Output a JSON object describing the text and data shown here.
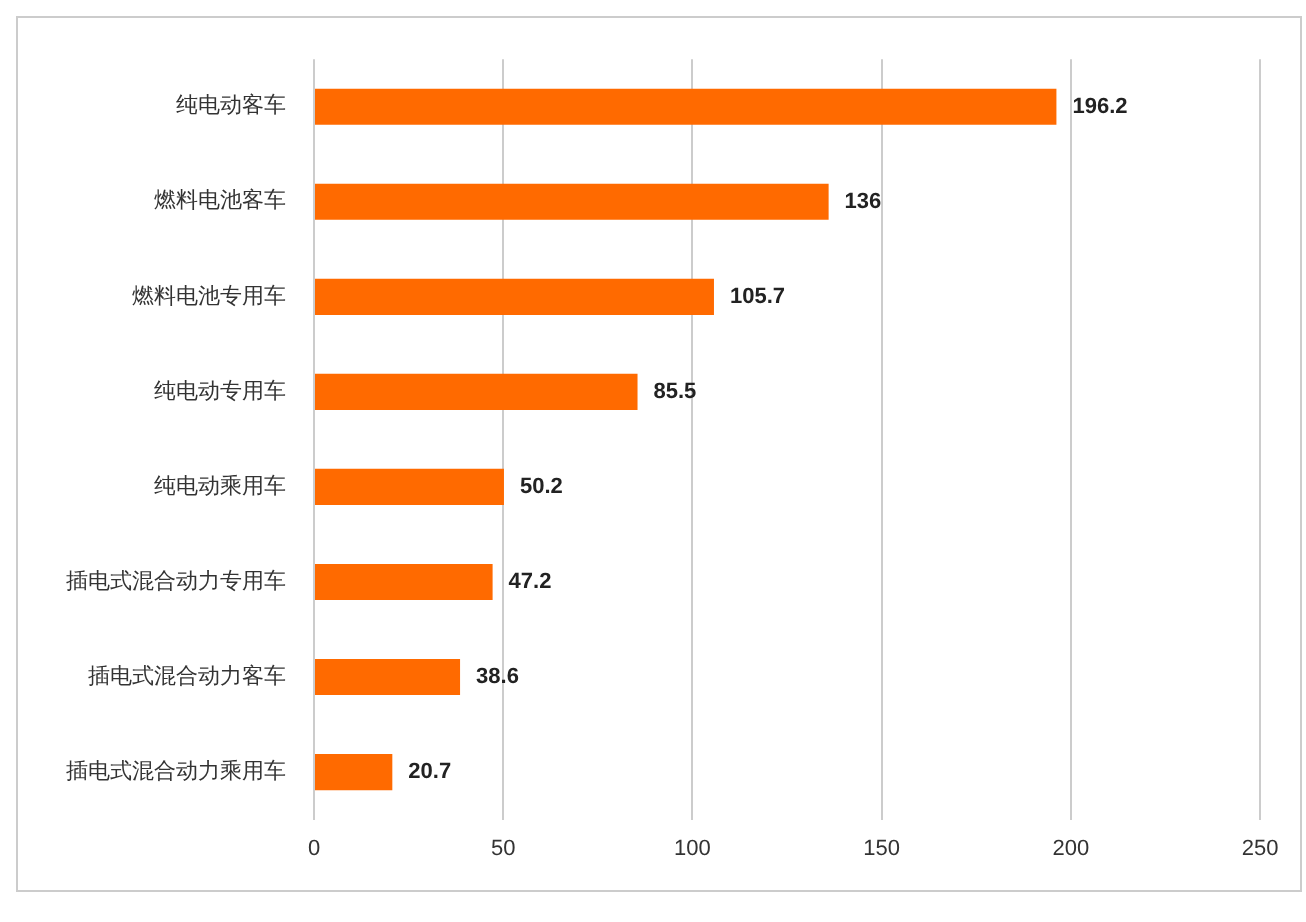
{
  "chart_data": {
    "type": "bar",
    "orientation": "horizontal",
    "categories": [
      "纯电动客车",
      "燃料电池客车",
      "燃料电池专用车",
      "纯电动专用车",
      "纯电动乘用车",
      "插电式混合动力专用车",
      "插电式混合动力客车",
      "插电式混合动力乘用车"
    ],
    "values": [
      196.2,
      136,
      105.7,
      85.5,
      50.2,
      47.2,
      38.6,
      20.7
    ],
    "color": "#ff6a00",
    "xlim": [
      0,
      250
    ],
    "xticks": [
      0,
      50,
      100,
      150,
      200,
      250
    ],
    "grid": "x",
    "data_labels": true
  }
}
